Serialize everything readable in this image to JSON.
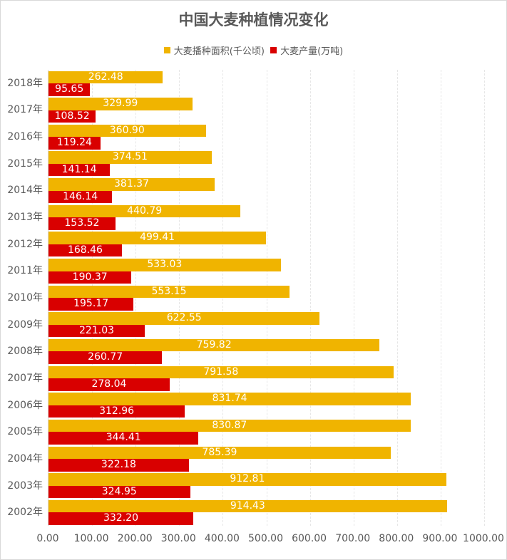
{
  "chart_data": {
    "type": "bar",
    "orientation": "horizontal",
    "title": "中国大麦种植情况变化",
    "xlabel": "",
    "ylabel": "",
    "xlim": [
      0,
      1000
    ],
    "x_ticks": [
      "0.00",
      "100.00",
      "200.00",
      "300.00",
      "400.00",
      "500.00",
      "600.00",
      "700.00",
      "800.00",
      "900.00",
      "1000.00"
    ],
    "grid": true,
    "legend_position": "top",
    "categories": [
      "2018年",
      "2017年",
      "2016年",
      "2015年",
      "2014年",
      "2013年",
      "2012年",
      "2011年",
      "2010年",
      "2009年",
      "2008年",
      "2007年",
      "2006年",
      "2005年",
      "2004年",
      "2003年",
      "2002年"
    ],
    "series": [
      {
        "name": "大麦播种面积(千公顷)",
        "color": "#F0B400",
        "values": [
          262.48,
          329.99,
          360.9,
          374.51,
          381.37,
          440.79,
          499.41,
          533.03,
          553.15,
          622.55,
          759.82,
          791.58,
          831.74,
          830.87,
          785.39,
          912.81,
          914.43
        ],
        "labels": [
          "262.48",
          "329.99",
          "360.90",
          "374.51",
          "381.37",
          "440.79",
          "499.41",
          "533.03",
          "553.15",
          "622.55",
          "759.82",
          "791.58",
          "831.74",
          "830.87",
          "785.39",
          "912.81",
          "914.43"
        ]
      },
      {
        "name": "大麦产量(万吨)",
        "color": "#D90000",
        "values": [
          95.65,
          108.52,
          119.24,
          141.14,
          146.14,
          153.52,
          168.46,
          190.37,
          195.17,
          221.03,
          260.77,
          278.04,
          312.96,
          344.41,
          322.18,
          324.95,
          332.2
        ],
        "labels": [
          "95.65",
          "108.52",
          "119.24",
          "141.14",
          "146.14",
          "153.52",
          "168.46",
          "190.37",
          "195.17",
          "221.03",
          "260.77",
          "278.04",
          "312.96",
          "344.41",
          "322.18",
          "324.95",
          "332.20"
        ]
      }
    ]
  }
}
